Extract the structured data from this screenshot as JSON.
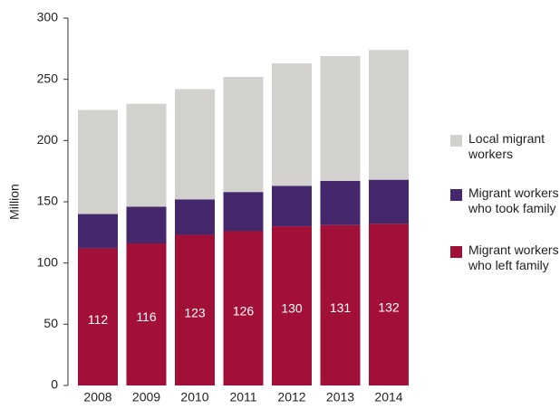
{
  "chart_data": {
    "type": "stacked_bar",
    "y_label": "Million",
    "categories": [
      "2008",
      "2009",
      "2010",
      "2011",
      "2012",
      "2013",
      "2014"
    ],
    "series": [
      {
        "name": "Migrant workers who left family",
        "color": "#a31037",
        "values": [
          112,
          116,
          123,
          126,
          130,
          131,
          132
        ]
      },
      {
        "name": "Migrant workers who took family",
        "color": "#45286b",
        "values": [
          28,
          30,
          29,
          32,
          33,
          36,
          36
        ]
      },
      {
        "name": "Local migrant workers",
        "color": "#d3d1ce",
        "values": [
          85,
          84,
          90,
          94,
          100,
          102,
          106
        ]
      }
    ],
    "data_labels_series": 0,
    "ylim": [
      0,
      300
    ],
    "yticks": [
      0,
      50,
      100,
      150,
      200,
      250,
      300
    ]
  }
}
